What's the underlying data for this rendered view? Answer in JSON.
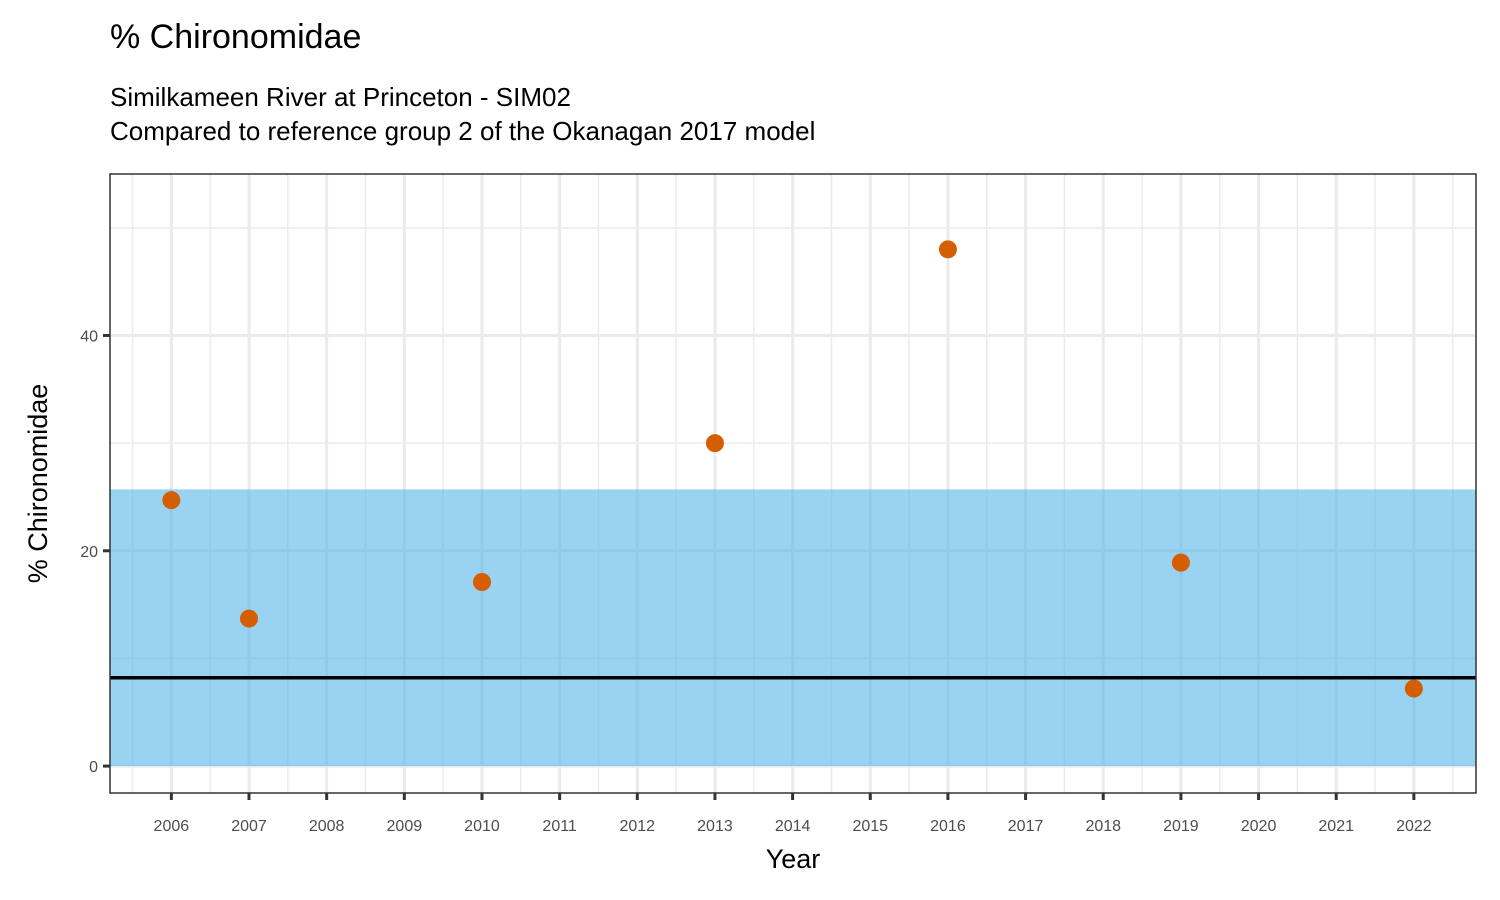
{
  "chart_data": {
    "type": "scatter",
    "title": "% Chironomidae",
    "subtitle_lines": [
      "Similkameen River at Princeton - SIM02",
      "Compared to reference group 2 of the Okanagan 2017 model"
    ],
    "xlabel": "Year",
    "ylabel": "% Chironomidae",
    "xlim": [
      2005.21,
      2022.8
    ],
    "ylim": [
      -2.5,
      55
    ],
    "x_ticks": [
      2006,
      2007,
      2008,
      2009,
      2010,
      2011,
      2012,
      2013,
      2014,
      2015,
      2016,
      2017,
      2018,
      2019,
      2020,
      2021,
      2022
    ],
    "y_ticks": [
      0,
      20,
      40
    ],
    "y_minor": [
      10,
      30,
      50
    ],
    "grid": true,
    "reference_band": {
      "ymin": 0,
      "ymax": 25.7,
      "color": "#56B4E9",
      "opacity": 0.6
    },
    "reference_line": {
      "y": 8.2,
      "color": "#000000"
    },
    "point_color": "#D55E00",
    "points": [
      {
        "x": 2006,
        "y": 24.7
      },
      {
        "x": 2007,
        "y": 13.7
      },
      {
        "x": 2010,
        "y": 17.1
      },
      {
        "x": 2013,
        "y": 30.0
      },
      {
        "x": 2016,
        "y": 48.0
      },
      {
        "x": 2019,
        "y": 18.9
      },
      {
        "x": 2022,
        "y": 7.2
      }
    ]
  }
}
